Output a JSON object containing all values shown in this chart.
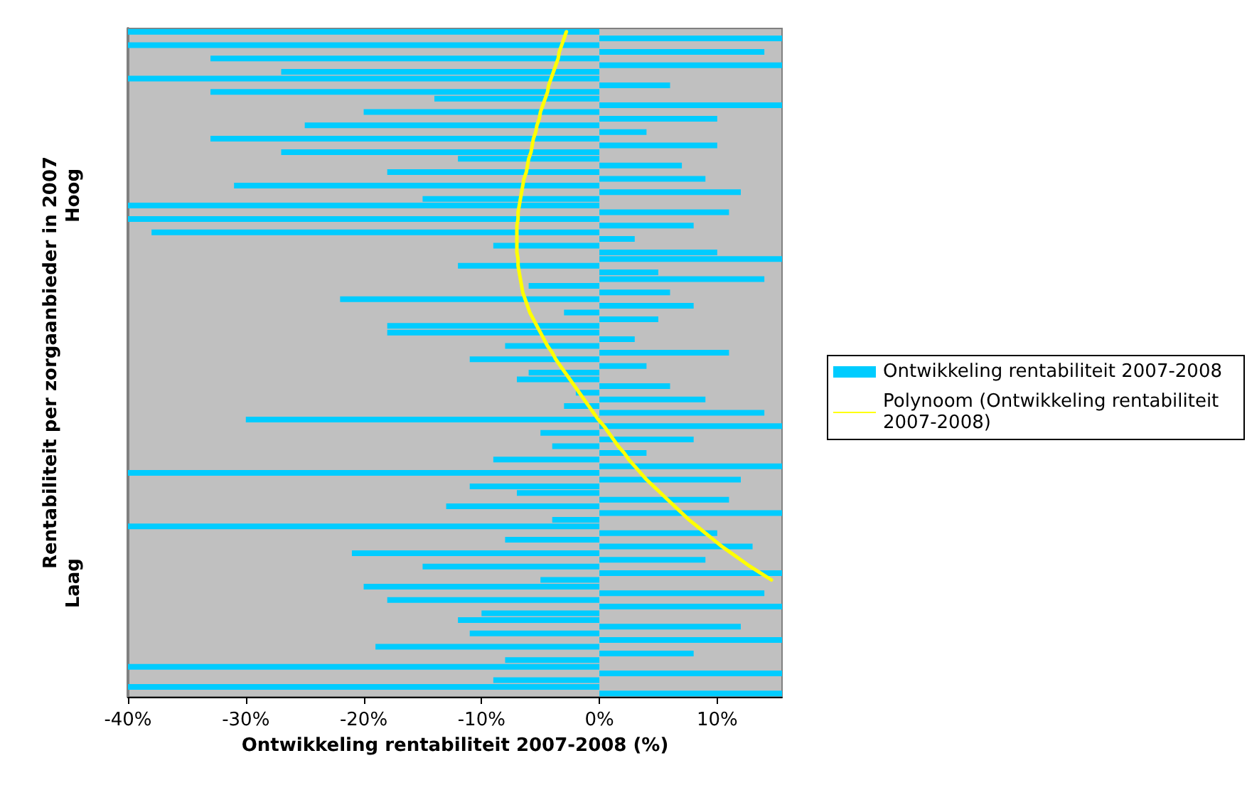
{
  "chart_data": {
    "type": "bar",
    "orientation": "horizontal",
    "xlabel": "Ontwikkeling rentabiliteit 2007-2008 (%)",
    "ylabel": "Rentabiliteit per zorgaanbieder in 2007",
    "annotations": [
      "Hoog",
      "Laag"
    ],
    "categories": [
      null,
      null,
      null,
      null,
      null,
      null,
      null,
      null,
      null,
      null,
      null,
      null,
      null,
      null,
      null,
      null,
      null,
      null,
      null,
      null,
      null,
      null,
      null,
      null,
      null,
      null,
      null,
      null,
      null,
      null,
      null,
      null,
      null,
      null,
      null,
      null,
      null,
      null,
      null,
      null,
      null,
      null,
      null,
      null,
      null,
      null,
      null,
      null,
      null,
      null,
      null,
      null,
      null,
      null,
      null,
      null,
      null,
      null,
      null,
      null,
      null,
      null,
      null,
      null,
      null,
      null,
      null,
      null,
      null,
      null,
      null,
      null,
      null,
      null,
      null,
      null,
      null,
      null,
      null,
      null,
      null,
      null,
      null,
      null,
      null,
      null,
      null,
      null,
      null,
      null,
      null,
      null,
      null,
      null,
      null,
      null,
      null,
      null,
      null,
      null
    ],
    "xlim": [
      -40,
      15.5
    ],
    "xticks": [
      {
        "value": -40,
        "label": "-40%"
      },
      {
        "value": -30,
        "label": "-30%"
      },
      {
        "value": -20,
        "label": "-20%"
      },
      {
        "value": -10,
        "label": "-10%"
      },
      {
        "value": 0,
        "label": "0%"
      },
      {
        "value": 10,
        "label": "10%"
      }
    ],
    "grid": false,
    "legend": "right",
    "tick_labels": "x",
    "series": [
      {
        "name": "Ontwikkeling rentabiliteit 2007-2008",
        "color": "#00ccff",
        "values": [
          -40,
          15.5,
          -40,
          14,
          -33,
          15.5,
          -27,
          -40,
          6,
          -33,
          -14,
          15.5,
          -20,
          10,
          -25,
          4,
          -33,
          10,
          -27,
          -12,
          7,
          -18,
          9,
          -31,
          12,
          -15,
          -40,
          11,
          -40,
          8,
          -38,
          3,
          -9,
          10,
          15.5,
          -12,
          5,
          14,
          -6,
          6,
          -22,
          8,
          -3,
          5,
          -18,
          -18,
          3,
          -8,
          11,
          -11,
          4,
          -6,
          -7,
          6,
          -2,
          9,
          -3,
          14,
          -30,
          15.5,
          -5,
          8,
          -4,
          4,
          -9,
          15.5,
          -40,
          12,
          -11,
          -7,
          11,
          -13,
          15.5,
          -4,
          -40,
          10,
          -8,
          13,
          -21,
          9,
          -15,
          15.5,
          -5,
          -20,
          14,
          -18,
          15.5,
          -10,
          -12,
          12,
          -11,
          15.5,
          -19,
          8,
          -8,
          -40,
          15.5,
          -9,
          -40,
          15.5
        ]
      },
      {
        "name": "Polynoom (Ontwikkeling rentabiliteit 2007-2008)",
        "type": "line",
        "color": "#ffff00",
        "values": [
          -2.8,
          -3.0,
          -3.2,
          -3.4,
          -3.5,
          -3.7,
          -3.9,
          -4.1,
          -4.3,
          -4.4,
          -4.6,
          -4.8,
          -5.0,
          -5.1,
          -5.3,
          -5.4,
          -5.6,
          -5.7,
          -5.8,
          -6.0,
          -6.1,
          -6.2,
          -6.4,
          -6.5,
          -6.6,
          -6.7,
          -6.8,
          -6.9,
          -6.9,
          -7.0,
          -7.0,
          -7.0,
          -7.0,
          -7.0,
          -6.9,
          -6.9,
          -6.8,
          -6.7,
          -6.6,
          -6.5,
          -6.3,
          -6.1,
          -5.9,
          -5.6,
          -5.3,
          -5.0,
          -4.7,
          -4.4,
          -4.0,
          -3.7,
          -3.3,
          -2.9,
          -2.5,
          -2.1,
          -1.7,
          -1.3,
          -0.9,
          -0.5,
          -0.1,
          0.4,
          0.8,
          1.2,
          1.6,
          2.1,
          2.5,
          3.0,
          3.5,
          4.0,
          4.6,
          5.2,
          5.8,
          6.4,
          7.0,
          7.6,
          8.3,
          9.0,
          9.7,
          10.4,
          11.2,
          12.0,
          12.8,
          13.7,
          14.6,
          null,
          null,
          null,
          null,
          null,
          null,
          null,
          null,
          null,
          null,
          null,
          null,
          null,
          null,
          null,
          null,
          null
        ]
      }
    ]
  }
}
